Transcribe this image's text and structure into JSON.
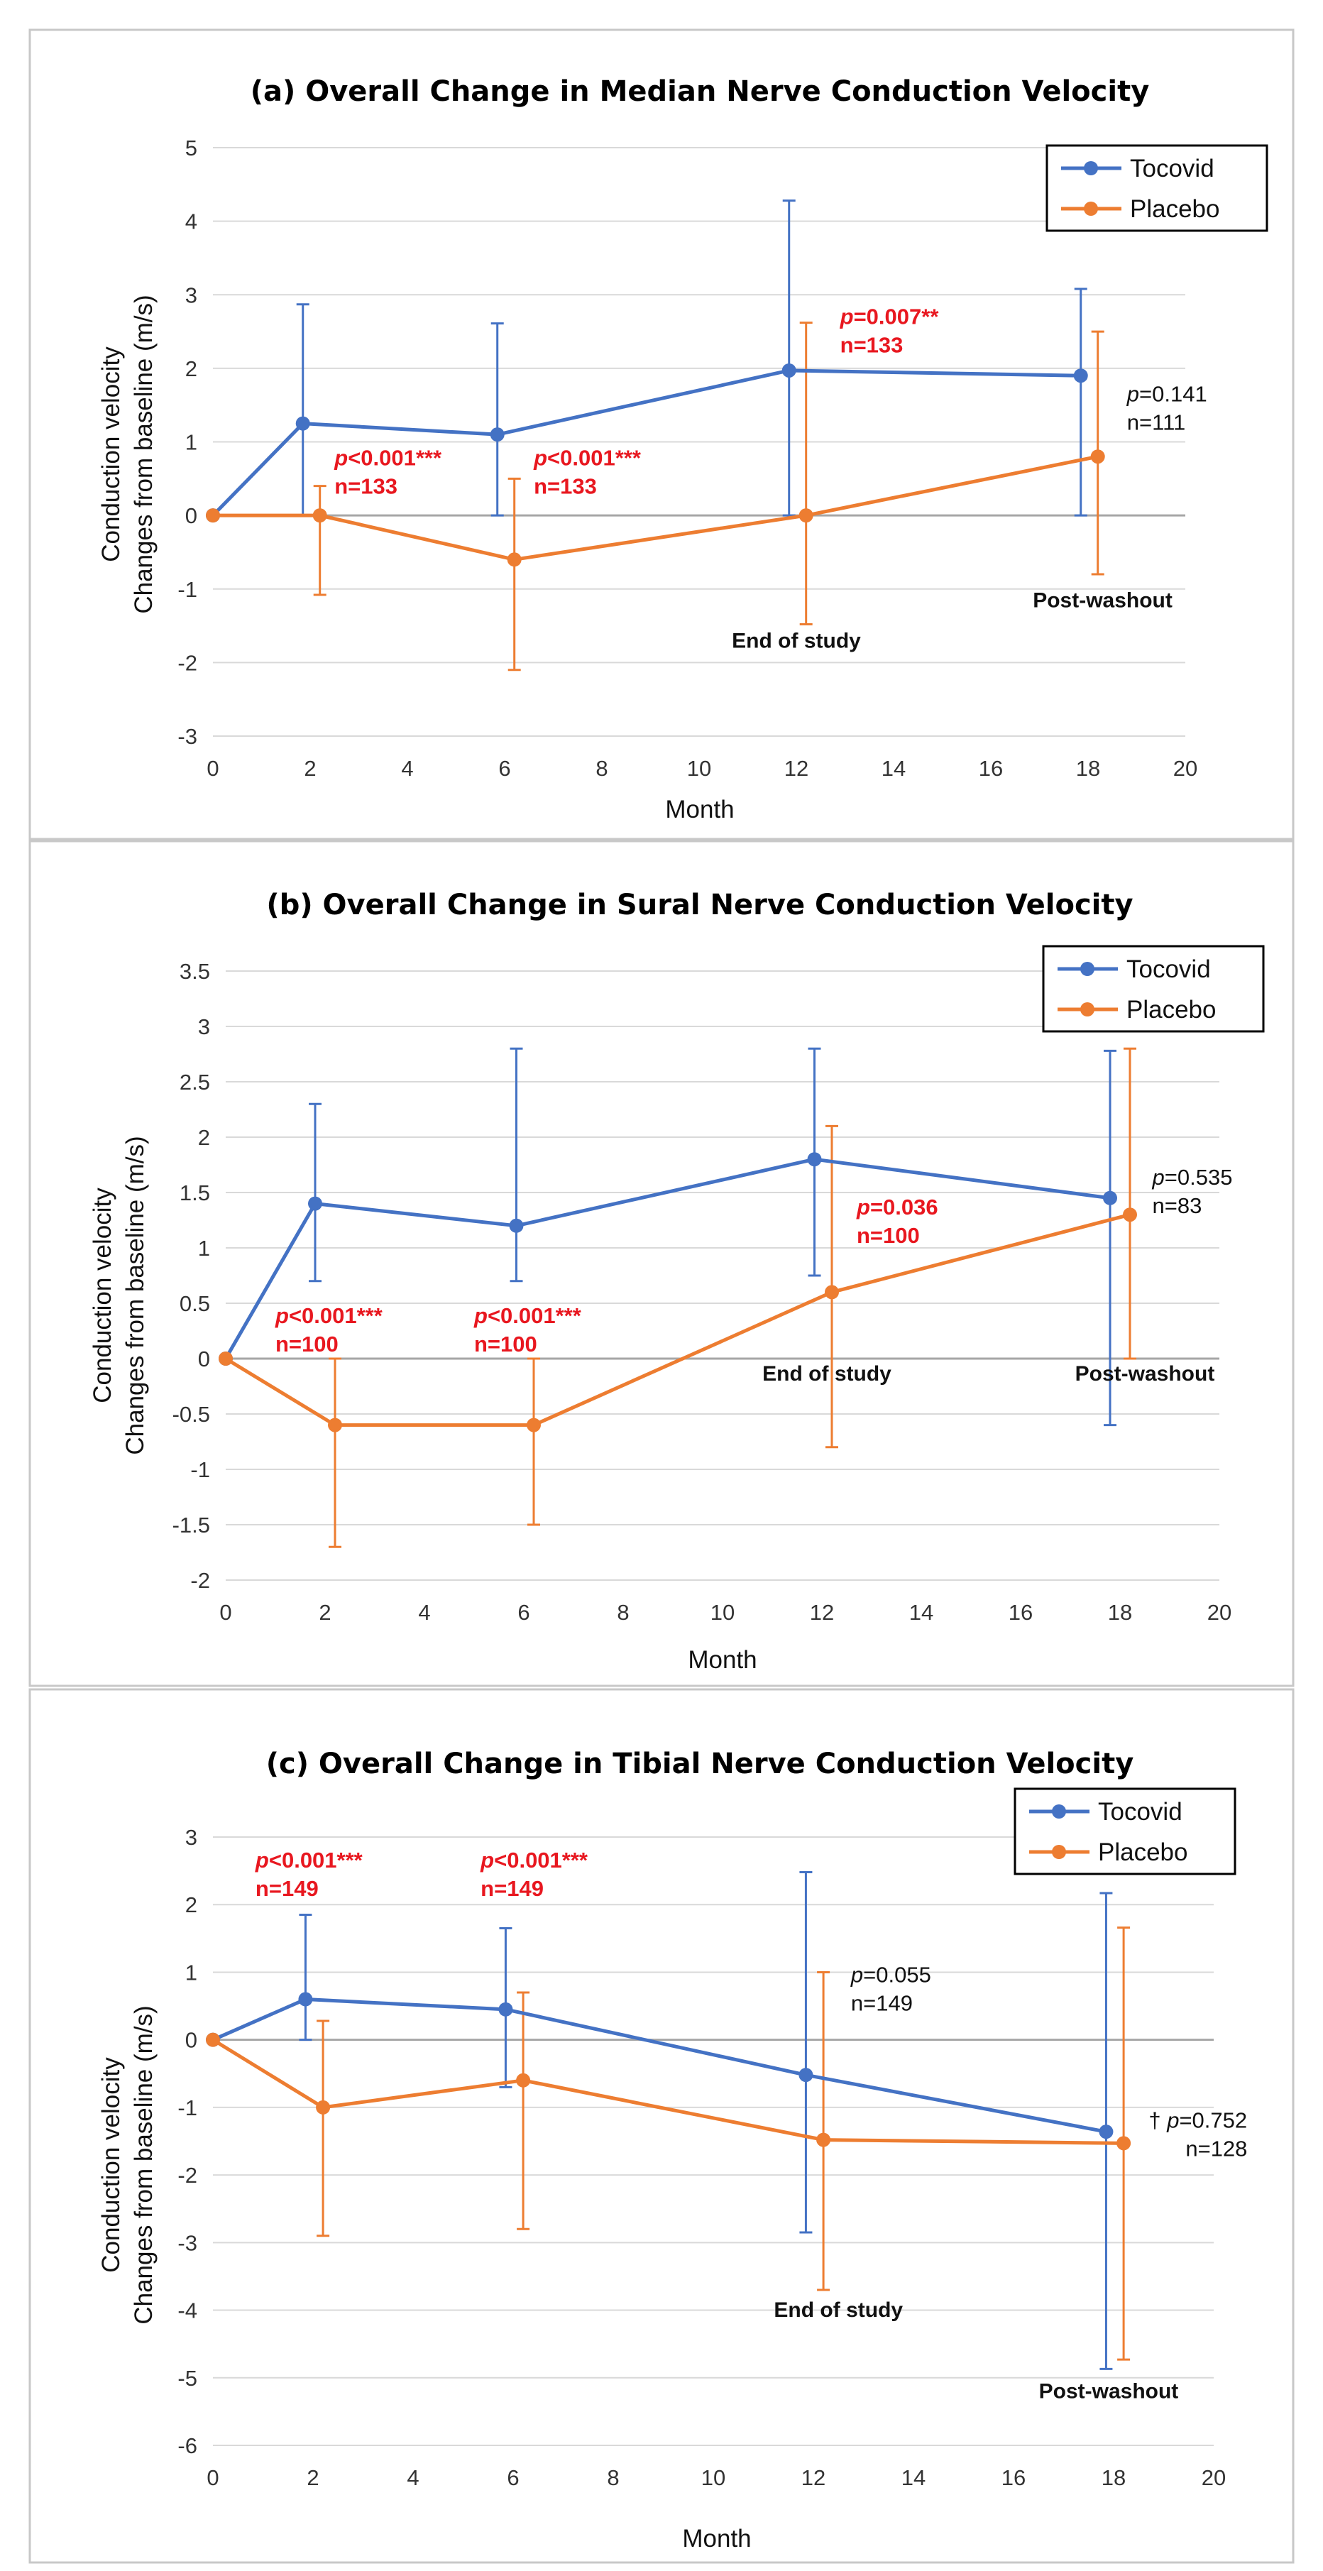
{
  "chart_data": [
    {
      "type": "line",
      "title": "(a) Overall Change in Median Nerve Conduction Velocity",
      "xlabel": "Month",
      "ylabel": [
        "Conduction velocity",
        "Changes from baseline (m/s)"
      ],
      "xlim": [
        0,
        20
      ],
      "ylim": [
        -3,
        5
      ],
      "xticks": [
        0,
        2,
        4,
        6,
        8,
        10,
        12,
        14,
        16,
        18,
        20
      ],
      "yticks": [
        -3,
        -2,
        -1,
        0,
        1,
        2,
        3,
        4,
        5
      ],
      "ytick_labels": [
        "-3",
        "-2",
        "-1",
        "0",
        "1",
        "2",
        "3",
        "4",
        "5"
      ],
      "series": [
        {
          "name": "Tocovid",
          "color": "#4472C4",
          "x": [
            0,
            1.85,
            5.85,
            11.85,
            17.85
          ],
          "y": [
            0,
            1.25,
            1.1,
            1.97,
            1.9
          ],
          "err_low": [
            0,
            0,
            0,
            0,
            0
          ],
          "err_high": [
            0,
            2.87,
            2.61,
            4.28,
            3.08
          ]
        },
        {
          "name": "Placebo",
          "color": "#ED7D31",
          "x": [
            0,
            2.2,
            6.2,
            12.2,
            18.2
          ],
          "y": [
            0,
            0,
            -0.6,
            0,
            0.8
          ],
          "err_low": [
            0,
            -1.08,
            -2.1,
            -1.48,
            -0.8
          ],
          "err_high": [
            0,
            0.4,
            0.5,
            2.62,
            2.5
          ]
        }
      ],
      "annotations": [
        {
          "style": "red",
          "x": 2.5,
          "y": 0.68,
          "p": "p",
          "rest": "<0.001***",
          "n": "n=133"
        },
        {
          "style": "red",
          "x": 6.6,
          "y": 0.68,
          "p": "p",
          "rest": "<0.001***",
          "n": "n=133"
        },
        {
          "style": "red",
          "x": 12.9,
          "y": 2.6,
          "p": "p",
          "rest": "=0.007**",
          "n": "n=133"
        },
        {
          "style": "black",
          "x": 18.8,
          "y": 1.55,
          "p": "p",
          "rest": "=0.141",
          "n": "n=111"
        }
      ],
      "notes": [
        {
          "text": "End of study",
          "x": 12.0,
          "y": -1.8
        },
        {
          "text": "Post-washout",
          "x": 18.3,
          "y": -1.25
        }
      ],
      "legend": {
        "position": "top-right",
        "entries": [
          "Tocovid",
          "Placebo"
        ]
      }
    },
    {
      "type": "line",
      "title": "(b) Overall Change in Sural Nerve Conduction Velocity",
      "xlabel": "Month",
      "ylabel": [
        "Conduction velocity",
        "Changes from baseline (m/s)"
      ],
      "xlim": [
        0,
        20
      ],
      "ylim": [
        -2,
        3.5
      ],
      "xticks": [
        0,
        2,
        4,
        6,
        8,
        10,
        12,
        14,
        16,
        18,
        20
      ],
      "yticks": [
        -2,
        -1.5,
        -1,
        -0.5,
        0,
        0.5,
        1,
        1.5,
        2,
        2.5,
        3,
        3.5
      ],
      "ytick_labels": [
        "-2",
        "-1.5",
        "-1",
        "-0.5",
        "0",
        "0.5",
        "1",
        "1.5",
        "2",
        "2.5",
        "3",
        "3.5"
      ],
      "series": [
        {
          "name": "Tocovid",
          "color": "#4472C4",
          "x": [
            0,
            1.8,
            5.85,
            11.85,
            17.8
          ],
          "y": [
            0,
            1.4,
            1.2,
            1.8,
            1.45
          ],
          "err_low": [
            0,
            0.7,
            0.7,
            0.75,
            -0.6
          ],
          "err_high": [
            0,
            2.3,
            2.8,
            2.8,
            2.78
          ]
        },
        {
          "name": "Placebo",
          "color": "#ED7D31",
          "x": [
            0,
            2.2,
            6.2,
            12.2,
            18.2
          ],
          "y": [
            0,
            -0.6,
            -0.6,
            0.6,
            1.3
          ],
          "err_low": [
            0,
            -1.7,
            -1.5,
            -0.8,
            0
          ],
          "err_high": [
            0,
            0,
            0,
            2.1,
            2.8
          ]
        }
      ],
      "annotations": [
        {
          "style": "red",
          "x": 1.0,
          "y": 0.32,
          "p": "p",
          "rest": "<0.001***",
          "n": "n=100"
        },
        {
          "style": "red",
          "x": 5.0,
          "y": 0.32,
          "p": "p",
          "rest": "<0.001***",
          "n": "n=100"
        },
        {
          "style": "red",
          "x": 12.7,
          "y": 1.3,
          "p": "p",
          "rest": "=0.036",
          "n": "n=100"
        },
        {
          "style": "black",
          "x": 18.65,
          "y": 1.57,
          "p": "p",
          "rest": "=0.535",
          "n": "n=83"
        }
      ],
      "notes": [
        {
          "text": "End of study",
          "x": 12.1,
          "y": -0.2
        },
        {
          "text": "Post-washout",
          "x": 18.5,
          "y": -0.2
        }
      ],
      "legend": {
        "position": "top-right",
        "entries": [
          "Tocovid",
          "Placebo"
        ]
      }
    },
    {
      "type": "line",
      "title": "(c) Overall Change in Tibial Nerve Conduction Velocity",
      "xlabel": "Month",
      "ylabel": [
        "Conduction velocity",
        "Changes from baseline (m/s)"
      ],
      "xlim": [
        0,
        20
      ],
      "ylim": [
        -6,
        3
      ],
      "xticks": [
        0,
        2,
        4,
        6,
        8,
        10,
        12,
        14,
        16,
        18,
        20
      ],
      "yticks": [
        -6,
        -5,
        -4,
        -3,
        -2,
        -1,
        0,
        1,
        2,
        3
      ],
      "ytick_labels": [
        "-6",
        "-5",
        "-4",
        "-3",
        "-2",
        "-1",
        "0",
        "1",
        "2",
        "3"
      ],
      "series": [
        {
          "name": "Tocovid",
          "color": "#4472C4",
          "x": [
            0,
            1.85,
            5.85,
            11.85,
            17.85
          ],
          "y": [
            0,
            0.6,
            0.45,
            -0.52,
            -1.36
          ],
          "err_low": [
            0,
            0,
            -0.7,
            -2.85,
            -4.87
          ],
          "err_high": [
            0,
            1.85,
            1.65,
            2.48,
            2.17
          ]
        },
        {
          "name": "Placebo",
          "color": "#ED7D31",
          "x": [
            0,
            2.2,
            6.2,
            12.2,
            18.2
          ],
          "y": [
            0,
            -1.0,
            -0.6,
            -1.48,
            -1.53
          ],
          "err_low": [
            0,
            -2.9,
            -2.8,
            -3.7,
            -4.73
          ],
          "err_high": [
            0,
            0.28,
            0.7,
            1.0,
            1.66
          ]
        }
      ],
      "annotations": [
        {
          "style": "red",
          "x": 0.85,
          "y": 2.55,
          "p": "p",
          "rest": "<0.001***",
          "n": "n=149"
        },
        {
          "style": "red",
          "x": 5.35,
          "y": 2.55,
          "p": "p",
          "rest": "<0.001***",
          "n": "n=149"
        },
        {
          "style": "black",
          "x": 12.75,
          "y": 0.85,
          "p": "p",
          "rest": "=0.055",
          "n": "n=149"
        },
        {
          "style": "black",
          "x": 18.7,
          "y": -1.3,
          "p": "p",
          "rest": "=0.752",
          "n": "n=128",
          "prefix": "†"
        }
      ],
      "notes": [
        {
          "text": "End of study",
          "x": 12.5,
          "y": -4.1
        },
        {
          "text": "Post-washout",
          "x": 17.9,
          "y": -5.3
        }
      ],
      "legend": {
        "position": "top-right",
        "entries": [
          "Tocovid",
          "Placebo"
        ]
      }
    }
  ]
}
